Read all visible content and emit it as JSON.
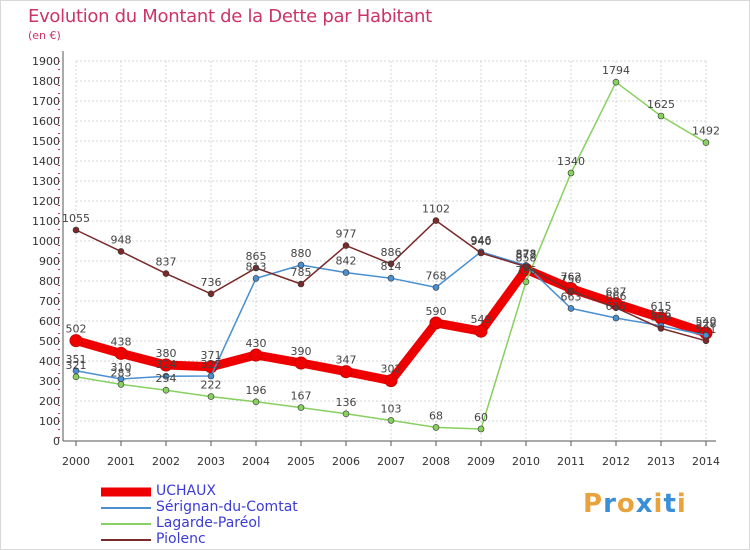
{
  "title": "Evolution du Montant de la Dette par Habitant",
  "unit": "(en €)",
  "brand": {
    "text": "Proxiti",
    "colors": [
      "#e8a33d",
      "#3a8fd6",
      "#e8a33d",
      "#3a8fd6",
      "#e8a33d",
      "#3a8fd6",
      "#e8a33d"
    ]
  },
  "chart_data": {
    "type": "line",
    "x": [
      2000,
      2001,
      2002,
      2003,
      2004,
      2005,
      2006,
      2007,
      2008,
      2009,
      2010,
      2011,
      2012,
      2013,
      2014
    ],
    "ylim": [
      0,
      1900
    ],
    "yticks": [
      0,
      100,
      200,
      300,
      400,
      500,
      600,
      700,
      800,
      900,
      1000,
      1100,
      1200,
      1300,
      1400,
      1500,
      1600,
      1700,
      1800,
      1900
    ],
    "grid": true,
    "legend_position": "bottom-left",
    "series": [
      {
        "name": "UCHAUX",
        "color": "#ee0000",
        "values": [
          502,
          438,
          380,
          371,
          430,
          390,
          347,
          302,
          590,
          549,
          858,
          762,
          687,
          615,
          540
        ]
      },
      {
        "name": "Sérignan-du-Comtat",
        "color": "#4a8fd0",
        "values": [
          351,
          310,
          324,
          325,
          813,
          880,
          842,
          814,
          768,
          946,
          878,
          663,
          615,
          576,
          528
        ]
      },
      {
        "name": "Lagarde-Paréol",
        "color": "#88d060",
        "values": [
          321,
          283,
          254,
          222,
          196,
          167,
          136,
          103,
          68,
          60,
          796,
          1340,
          1794,
          1625,
          1492
        ]
      },
      {
        "name": "Piolenc",
        "color": "#7a2a2a",
        "values": [
          1055,
          948,
          837,
          736,
          865,
          785,
          977,
          886,
          1102,
          940,
          872,
          750,
          666,
          563,
          501
        ]
      }
    ]
  }
}
